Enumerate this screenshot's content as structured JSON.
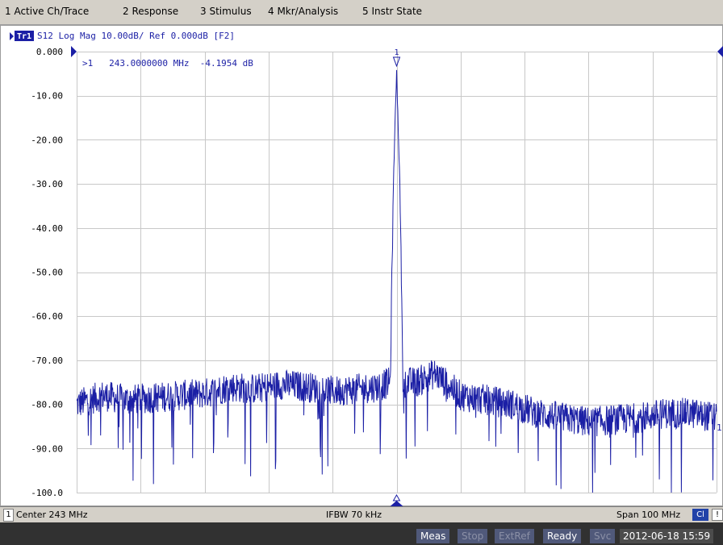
{
  "menu": [
    "1 Active Ch/Trace",
    "2 Response",
    "3 Stimulus",
    "4 Mkr/Analysis",
    "5 Instr State"
  ],
  "trace_header": {
    "badge": "Tr1",
    "text": "S12  Log Mag 10.00dB/ Ref 0.000dB  [F2]"
  },
  "marker": {
    "number": "1",
    "readout": ">1   243.0000000 MHz  -4.1954 dB"
  },
  "colors": {
    "trace": "#1b1fa5",
    "grid": "#c8c8c8",
    "axis_text": "#000000"
  },
  "chart_data": {
    "type": "line",
    "title": "S12  Log Mag 10.00dB/ Ref 0.000dB  [F2]",
    "xlabel": "",
    "ylabel": "",
    "x_range_mhz": [
      193,
      293
    ],
    "ylim": [
      -100,
      0
    ],
    "yticks": [
      "0.000",
      "-10.00",
      "-20.00",
      "-30.00",
      "-40.00",
      "-50.00",
      "-60.00",
      "-70.00",
      "-80.00",
      "-90.00",
      "-100.0"
    ],
    "grid": true,
    "series": [
      {
        "x": [
          193,
          197,
          201,
          205,
          209,
          213,
          217,
          221,
          225,
          229,
          233,
          237,
          240,
          242,
          242.5,
          243,
          243.5,
          244,
          246,
          249,
          253,
          257,
          261,
          265,
          269,
          273,
          277,
          281,
          285,
          289,
          293
        ],
        "y": [
          -80,
          -78,
          -79,
          -78.5,
          -78,
          -77.5,
          -76,
          -76.5,
          -75.5,
          -76,
          -77,
          -76.5,
          -76,
          -75,
          -30,
          -4.2,
          -30,
          -75,
          -75,
          -73,
          -78,
          -79,
          -80,
          -82,
          -83,
          -84,
          -83.5,
          -83,
          -82,
          -82,
          -83
        ]
      }
    ],
    "marker": {
      "x_mhz": 243.0,
      "y_db": -4.1954
    }
  },
  "status": {
    "channel": "1",
    "center": "Center 243 MHz",
    "ifbw": "IFBW 70 kHz",
    "span": "Span 100 MHz",
    "cl": "Cl",
    "edge": "!"
  },
  "indicators": [
    {
      "label": "Meas",
      "active": true
    },
    {
      "label": "Stop",
      "active": false
    },
    {
      "label": "ExtRef",
      "active": false
    },
    {
      "label": "Ready",
      "active": true
    },
    {
      "label": "Svc",
      "active": false
    }
  ],
  "datetime": "2012-06-18 15:59"
}
